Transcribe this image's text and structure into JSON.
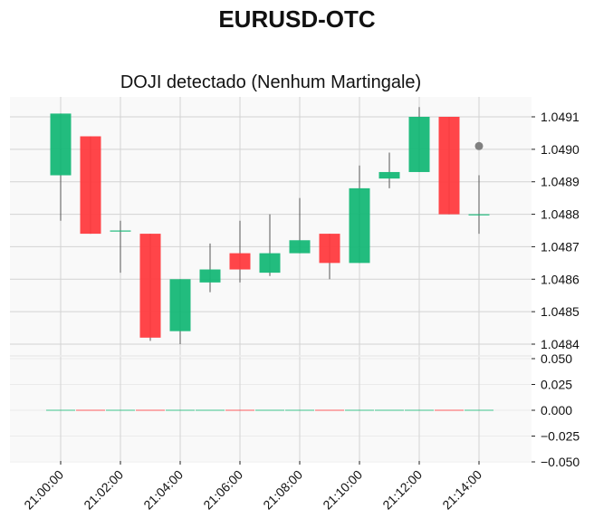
{
  "chart_data": {
    "type": "candlestick",
    "title": "EURUSD-OTC",
    "subtitle": "DOJI detectado (Nenhum Martingale)",
    "x_ticks": [
      "21:00:00",
      "21:02:00",
      "21:04:00",
      "21:06:00",
      "21:08:00",
      "21:10:00",
      "21:12:00",
      "21:14:00"
    ],
    "price_ticks": [
      "1.0484",
      "1.0485",
      "1.0486",
      "1.0487",
      "1.0488",
      "1.0489",
      "1.0490",
      "1.0491"
    ],
    "volume_ticks": [
      "0.050",
      "0.025",
      "0.000",
      "−0.025",
      "−0.050"
    ],
    "price_ylim": [
      1.04839,
      1.04914
    ],
    "volume_ylim": [
      -0.05,
      0.05
    ],
    "candles": [
      {
        "time": "21:00:00",
        "open": 1.04892,
        "high": 1.04911,
        "low": 1.04878,
        "close": 1.04911,
        "volume": 0
      },
      {
        "time": "21:01:00",
        "open": 1.04904,
        "high": 1.04904,
        "low": 1.04874,
        "close": 1.04874,
        "volume": 0
      },
      {
        "time": "21:02:00",
        "open": 1.04875,
        "high": 1.04878,
        "low": 1.04862,
        "close": 1.04875,
        "volume": 0
      },
      {
        "time": "21:03:00",
        "open": 1.04874,
        "high": 1.04874,
        "low": 1.04841,
        "close": 1.04842,
        "volume": 0
      },
      {
        "time": "21:04:00",
        "open": 1.04844,
        "high": 1.0486,
        "low": 1.0484,
        "close": 1.0486,
        "volume": 0
      },
      {
        "time": "21:05:00",
        "open": 1.04859,
        "high": 1.04871,
        "low": 1.04856,
        "close": 1.04863,
        "volume": 0
      },
      {
        "time": "21:06:00",
        "open": 1.04868,
        "high": 1.04878,
        "low": 1.04859,
        "close": 1.04863,
        "volume": 0
      },
      {
        "time": "21:07:00",
        "open": 1.04862,
        "high": 1.0488,
        "low": 1.04861,
        "close": 1.04868,
        "volume": 0
      },
      {
        "time": "21:08:00",
        "open": 1.04868,
        "high": 1.04885,
        "low": 1.04868,
        "close": 1.04872,
        "volume": 0
      },
      {
        "time": "21:09:00",
        "open": 1.04874,
        "high": 1.04874,
        "low": 1.0486,
        "close": 1.04865,
        "volume": 0
      },
      {
        "time": "21:10:00",
        "open": 1.04865,
        "high": 1.04895,
        "low": 1.04865,
        "close": 1.04888,
        "volume": 0
      },
      {
        "time": "21:11:00",
        "open": 1.04891,
        "high": 1.04899,
        "low": 1.04888,
        "close": 1.04893,
        "volume": 0
      },
      {
        "time": "21:12:00",
        "open": 1.04893,
        "high": 1.04913,
        "low": 1.04893,
        "close": 1.0491,
        "volume": 0
      },
      {
        "time": "21:13:00",
        "open": 1.0491,
        "high": 1.0491,
        "low": 1.0488,
        "close": 1.0488,
        "volume": 0
      },
      {
        "time": "21:14:00",
        "open": 1.0488,
        "high": 1.04892,
        "low": 1.04874,
        "close": 1.0488,
        "volume": 0
      }
    ],
    "marker": {
      "time": "21:14:00",
      "price": 1.04901,
      "color": "#808080"
    },
    "colors": {
      "up": "#16b877",
      "down": "#ff3b3f",
      "grid": "#d3d3d3",
      "panel": "#f9f9f9",
      "axis": "#ebebeb"
    },
    "grid": true
  }
}
